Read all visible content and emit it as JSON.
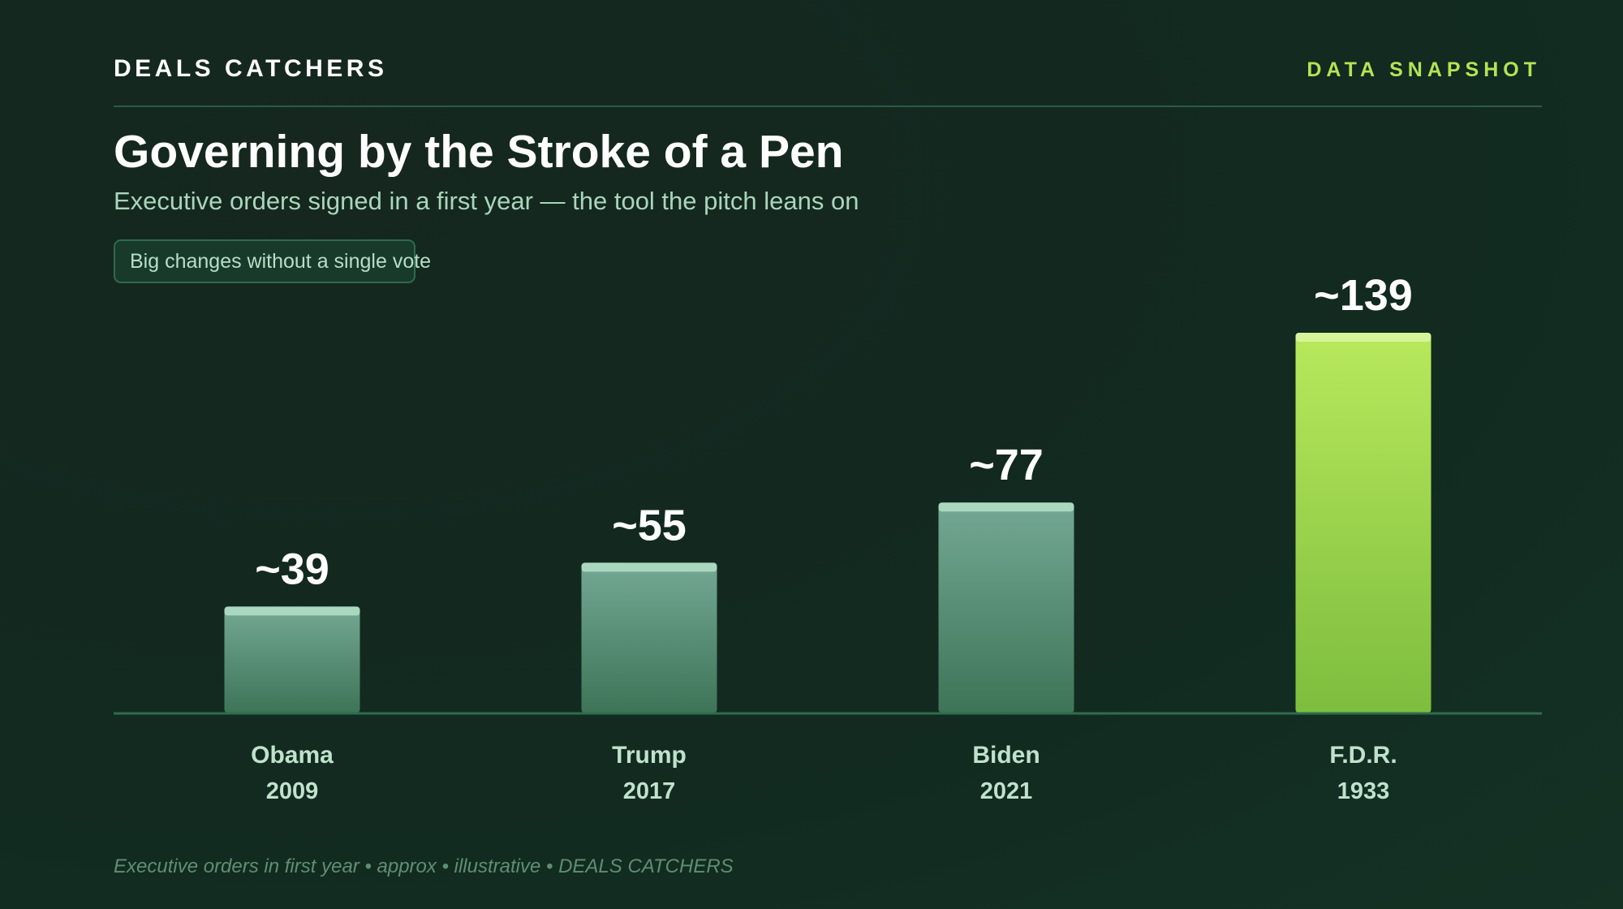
{
  "header": {
    "brand": "DEALS CATCHERS",
    "tag": "DATA SNAPSHOT"
  },
  "title": "Governing by the Stroke of a Pen",
  "subtitle": "Executive orders signed in a first year — the tool the pitch leans on",
  "pill": "Big changes without a single vote",
  "footer": "Executive orders in first year • approx • illustrative • DEALS CATCHERS",
  "colors": {
    "background": "#132b20",
    "accent": "#b4e354",
    "bar": "#5a977e",
    "highlight_bar": "#a2da4c"
  },
  "chart_data": {
    "type": "bar",
    "categories": [
      "Obama",
      "Trump",
      "Biden",
      "F.D.R."
    ],
    "years": [
      "2009",
      "2017",
      "2021",
      "1933"
    ],
    "values": [
      39,
      55,
      77,
      139
    ],
    "value_labels": [
      "~39",
      "~55",
      "~77",
      "~139"
    ],
    "highlight_index": 3,
    "ylim": [
      0,
      139
    ],
    "grid": false,
    "legend": "none"
  }
}
